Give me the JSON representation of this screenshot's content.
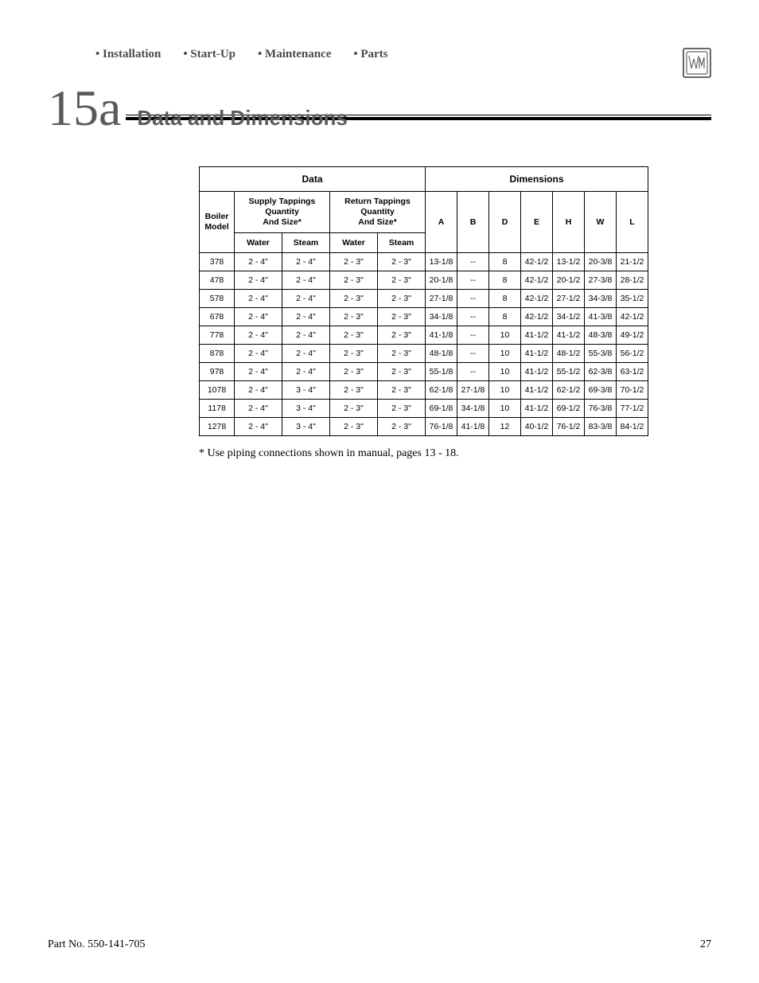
{
  "nav": {
    "items": [
      "• Installation",
      "• Start-Up",
      "• Maintenance",
      "• Parts"
    ]
  },
  "section": {
    "number": "15a",
    "title": "Data and Dimensions"
  },
  "table": {
    "group_headers": {
      "data": "Data",
      "dimensions": "Dimensions"
    },
    "sub_group_headers": {
      "supply": "Supply Tappings\nQuantity\nAnd Size*",
      "return": "Return Tappings\nQuantity\nAnd Size*"
    },
    "columns": {
      "model": "Boiler\nModel",
      "supply_water": "Water",
      "supply_steam": "Steam",
      "return_water": "Water",
      "return_steam": "Steam",
      "A": "A",
      "B": "B",
      "D": "D",
      "E": "E",
      "H": "H",
      "W": "W",
      "L": "L"
    },
    "rows": [
      {
        "model": "378",
        "sw": "2 - 4\"",
        "ss": "2 - 4\"",
        "rw": "2 - 3\"",
        "rs": "2 - 3\"",
        "A": "13-1/8",
        "B": "--",
        "D": "8",
        "E": "42-1/2",
        "H": "13-1/2",
        "W": "20-3/8",
        "L": "21-1/2"
      },
      {
        "model": "478",
        "sw": "2 - 4\"",
        "ss": "2 - 4\"",
        "rw": "2 - 3\"",
        "rs": "2 - 3\"",
        "A": "20-1/8",
        "B": "--",
        "D": "8",
        "E": "42-1/2",
        "H": "20-1/2",
        "W": "27-3/8",
        "L": "28-1/2"
      },
      {
        "model": "578",
        "sw": "2 - 4\"",
        "ss": "2 - 4\"",
        "rw": "2 - 3\"",
        "rs": "2 - 3\"",
        "A": "27-1/8",
        "B": "--",
        "D": "8",
        "E": "42-1/2",
        "H": "27-1/2",
        "W": "34-3/8",
        "L": "35-1/2"
      },
      {
        "model": "678",
        "sw": "2 - 4\"",
        "ss": "2 - 4\"",
        "rw": "2 - 3\"",
        "rs": "2 - 3\"",
        "A": "34-1/8",
        "B": "--",
        "D": "8",
        "E": "42-1/2",
        "H": "34-1/2",
        "W": "41-3/8",
        "L": "42-1/2"
      },
      {
        "model": "778",
        "sw": "2 - 4\"",
        "ss": "2 - 4\"",
        "rw": "2 - 3\"",
        "rs": "2 - 3\"",
        "A": "41-1/8",
        "B": "--",
        "D": "10",
        "E": "41-1/2",
        "H": "41-1/2",
        "W": "48-3/8",
        "L": "49-1/2"
      },
      {
        "model": "878",
        "sw": "2 - 4\"",
        "ss": "2 - 4\"",
        "rw": "2 - 3\"",
        "rs": "2 - 3\"",
        "A": "48-1/8",
        "B": "--",
        "D": "10",
        "E": "41-1/2",
        "H": "48-1/2",
        "W": "55-3/8",
        "L": "56-1/2"
      },
      {
        "model": "978",
        "sw": "2 - 4\"",
        "ss": "2 - 4\"",
        "rw": "2 - 3\"",
        "rs": "2 - 3\"",
        "A": "55-1/8",
        "B": "--",
        "D": "10",
        "E": "41-1/2",
        "H": "55-1/2",
        "W": "62-3/8",
        "L": "63-1/2"
      },
      {
        "model": "1078",
        "sw": "2 - 4\"",
        "ss": "3 - 4\"",
        "rw": "2 - 3\"",
        "rs": "2 - 3\"",
        "A": "62-1/8",
        "B": "27-1/8",
        "D": "10",
        "E": "41-1/2",
        "H": "62-1/2",
        "W": "69-3/8",
        "L": "70-1/2"
      },
      {
        "model": "1178",
        "sw": "2 - 4\"",
        "ss": "3 - 4\"",
        "rw": "2 - 3\"",
        "rs": "2 - 3\"",
        "A": "69-1/8",
        "B": "34-1/8",
        "D": "10",
        "E": "41-1/2",
        "H": "69-1/2",
        "W": "76-3/8",
        "L": "77-1/2"
      },
      {
        "model": "1278",
        "sw": "2 - 4\"",
        "ss": "3 - 4\"",
        "rw": "2 - 3\"",
        "rs": "2 - 3\"",
        "A": "76-1/8",
        "B": "41-1/8",
        "D": "12",
        "E": "40-1/2",
        "H": "76-1/2",
        "W": "83-3/8",
        "L": "84-1/2"
      }
    ]
  },
  "footnote": "* Use piping connections shown in manual, pages 13 - 18.",
  "footer": {
    "part": "Part No. 550-141-705",
    "page": "27"
  },
  "style": {
    "nav_color": "#4a4a4a",
    "heading_color": "#5a5a5a",
    "border_color": "#000000",
    "body_font_size": 10.5
  }
}
